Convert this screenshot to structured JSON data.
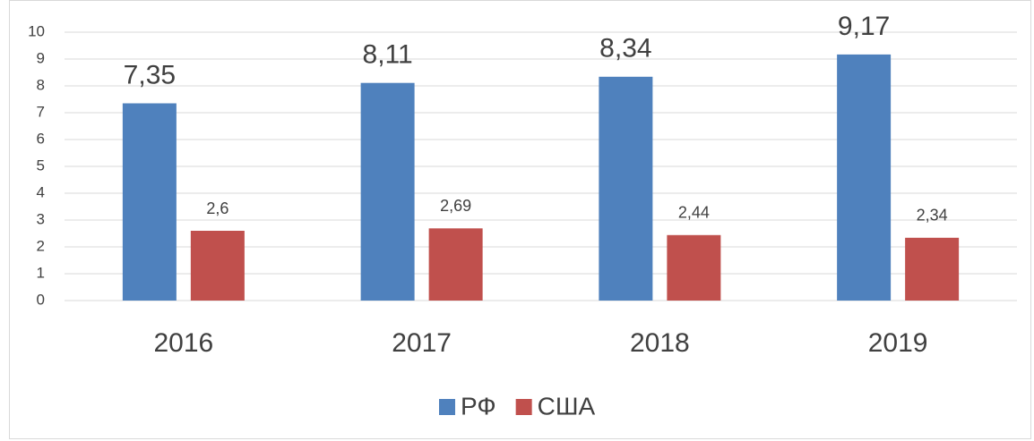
{
  "chart_data": {
    "type": "bar",
    "categories": [
      "2016",
      "2017",
      "2018",
      "2019"
    ],
    "series": [
      {
        "name": "РФ",
        "color": "#4f81bd",
        "values": [
          7.35,
          8.11,
          8.34,
          9.17
        ],
        "value_labels": [
          "7,35",
          "8,11",
          "8,34",
          "9,17"
        ]
      },
      {
        "name": "США",
        "color": "#c0504d",
        "values": [
          2.6,
          2.69,
          2.44,
          2.34
        ],
        "value_labels": [
          "2,6",
          "2,69",
          "2,44",
          "2,34"
        ]
      }
    ],
    "ylim": [
      0,
      10
    ],
    "yticks": [
      0,
      1,
      2,
      3,
      4,
      5,
      6,
      7,
      8,
      9,
      10
    ],
    "grid": true,
    "legend": "bottom"
  }
}
